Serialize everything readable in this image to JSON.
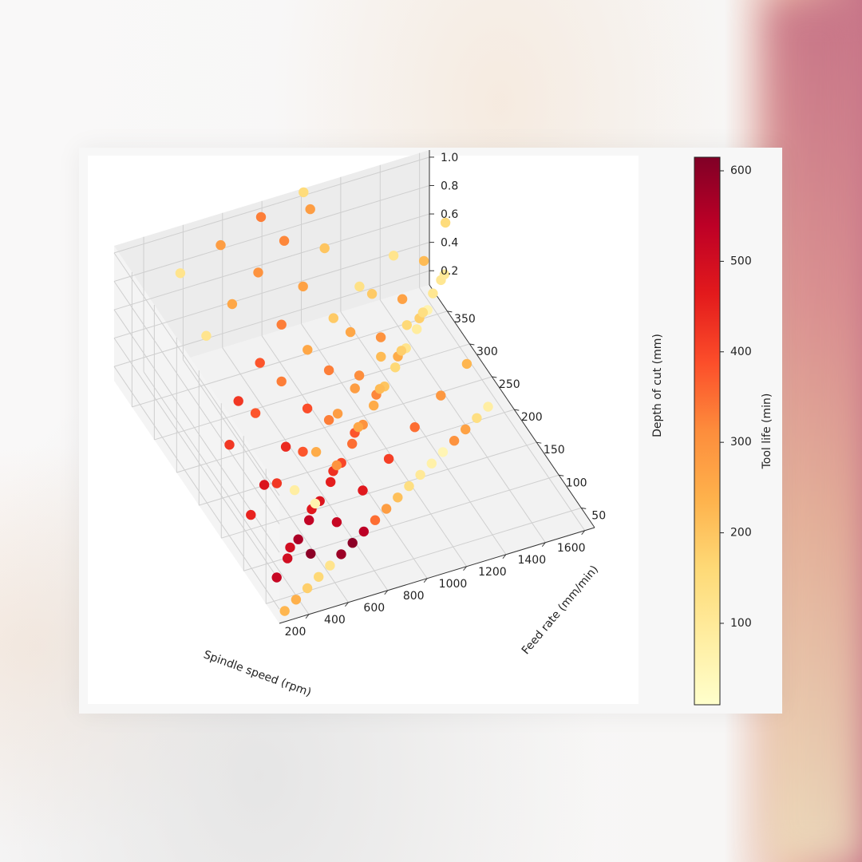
{
  "chart_data": {
    "type": "scatter",
    "dimensions": "3d",
    "title": "",
    "xlabel": "Spindle speed (rpm)",
    "ylabel": "Feed rate (mm/min)",
    "zlabel": "Depth of cut (mm)",
    "colorbar_label": "Tool life (min)",
    "colormap": "YlOrRd",
    "xlim": [
      50,
      1650
    ],
    "ylim": [
      20,
      390
    ],
    "zlim": [
      0.1,
      1.05
    ],
    "clim": [
      10,
      615
    ],
    "x_ticks": [
      "200",
      "400",
      "600",
      "800",
      "1000",
      "1200",
      "1400",
      "1600"
    ],
    "y_ticks": [
      "50",
      "100",
      "150",
      "200",
      "250",
      "300",
      "350"
    ],
    "z_ticks": [
      "0.2",
      "0.4",
      "0.6",
      "0.8",
      "1.0"
    ],
    "colorbar_ticks": [
      "100",
      "200",
      "300",
      "400",
      "500",
      "600"
    ],
    "grid": true,
    "legend": "none",
    "points": [
      [
        100,
        30,
        0.12,
        230
      ],
      [
        180,
        40,
        0.12,
        240
      ],
      [
        260,
        50,
        0.12,
        180
      ],
      [
        340,
        60,
        0.12,
        160
      ],
      [
        420,
        70,
        0.12,
        120
      ],
      [
        500,
        80,
        0.12,
        580
      ],
      [
        580,
        90,
        0.12,
        600
      ],
      [
        660,
        100,
        0.12,
        540
      ],
      [
        740,
        110,
        0.12,
        350
      ],
      [
        820,
        120,
        0.12,
        280
      ],
      [
        900,
        130,
        0.12,
        210
      ],
      [
        980,
        140,
        0.12,
        140
      ],
      [
        1060,
        150,
        0.12,
        100
      ],
      [
        1140,
        160,
        0.12,
        70
      ],
      [
        1220,
        170,
        0.12,
        50
      ],
      [
        1300,
        180,
        0.12,
        300
      ],
      [
        1380,
        190,
        0.12,
        270
      ],
      [
        1460,
        200,
        0.12,
        140
      ],
      [
        1540,
        210,
        0.12,
        80
      ],
      [
        150,
        70,
        0.15,
        520
      ],
      [
        250,
        90,
        0.15,
        500
      ],
      [
        350,
        110,
        0.15,
        560
      ],
      [
        450,
        130,
        0.15,
        530
      ],
      [
        550,
        150,
        0.15,
        480
      ],
      [
        650,
        170,
        0.15,
        460
      ],
      [
        750,
        190,
        0.15,
        400
      ],
      [
        850,
        210,
        0.15,
        350
      ],
      [
        950,
        230,
        0.15,
        300
      ],
      [
        1050,
        250,
        0.15,
        250
      ],
      [
        1150,
        270,
        0.15,
        200
      ],
      [
        1250,
        290,
        0.15,
        160
      ],
      [
        1350,
        310,
        0.15,
        120
      ],
      [
        1450,
        330,
        0.15,
        90
      ],
      [
        1550,
        350,
        0.15,
        60
      ],
      [
        200,
        150,
        0.2,
        450
      ],
      [
        400,
        180,
        0.2,
        420
      ],
      [
        600,
        210,
        0.2,
        380
      ],
      [
        800,
        240,
        0.2,
        330
      ],
      [
        1000,
        270,
        0.2,
        280
      ],
      [
        1200,
        300,
        0.2,
        220
      ],
      [
        1400,
        330,
        0.2,
        160
      ],
      [
        1600,
        360,
        0.2,
        110
      ],
      [
        300,
        60,
        0.3,
        600
      ],
      [
        500,
        90,
        0.3,
        520
      ],
      [
        700,
        120,
        0.3,
        470
      ],
      [
        900,
        150,
        0.3,
        410
      ],
      [
        1100,
        180,
        0.3,
        350
      ],
      [
        1300,
        210,
        0.3,
        290
      ],
      [
        1500,
        240,
        0.3,
        230
      ],
      [
        250,
        220,
        0.35,
        420
      ],
      [
        450,
        250,
        0.35,
        380
      ],
      [
        650,
        280,
        0.35,
        330
      ],
      [
        850,
        310,
        0.35,
        260
      ],
      [
        1050,
        340,
        0.35,
        190
      ],
      [
        1250,
        370,
        0.35,
        130
      ],
      [
        150,
        40,
        0.5,
        500
      ],
      [
        350,
        80,
        0.5,
        470
      ],
      [
        550,
        120,
        0.5,
        430
      ],
      [
        750,
        160,
        0.5,
        380
      ],
      [
        950,
        200,
        0.5,
        320
      ],
      [
        1150,
        240,
        0.5,
        250
      ],
      [
        1350,
        280,
        0.5,
        180
      ],
      [
        1550,
        320,
        0.5,
        110
      ],
      [
        200,
        120,
        0.55,
        480
      ],
      [
        400,
        160,
        0.55,
        440
      ],
      [
        600,
        200,
        0.55,
        390
      ],
      [
        800,
        240,
        0.55,
        330
      ],
      [
        1000,
        280,
        0.55,
        260
      ],
      [
        1200,
        320,
        0.55,
        190
      ],
      [
        1400,
        360,
        0.55,
        120
      ],
      [
        300,
        50,
        0.7,
        60
      ],
      [
        500,
        90,
        0.7,
        300
      ],
      [
        700,
        130,
        0.7,
        260
      ],
      [
        900,
        170,
        0.7,
        220
      ],
      [
        1100,
        210,
        0.7,
        180
      ],
      [
        1300,
        250,
        0.7,
        140
      ],
      [
        1500,
        290,
        0.7,
        100
      ],
      [
        250,
        200,
        0.75,
        420
      ],
      [
        450,
        240,
        0.75,
        380
      ],
      [
        650,
        280,
        0.75,
        330
      ],
      [
        850,
        320,
        0.75,
        270
      ],
      [
        1050,
        360,
        0.75,
        200
      ],
      [
        150,
        30,
        0.95,
        80
      ],
      [
        350,
        70,
        0.95,
        250
      ],
      [
        550,
        110,
        0.95,
        280
      ],
      [
        750,
        150,
        0.95,
        310
      ],
      [
        950,
        190,
        0.95,
        300
      ],
      [
        1150,
        230,
        0.95,
        270
      ],
      [
        1350,
        270,
        0.95,
        220
      ],
      [
        1550,
        310,
        0.95,
        150
      ],
      [
        200,
        250,
        1.0,
        120
      ],
      [
        400,
        280,
        1.0,
        260
      ],
      [
        600,
        310,
        1.0,
        300
      ],
      [
        800,
        340,
        1.0,
        320
      ],
      [
        1000,
        370,
        1.0,
        280
      ],
      [
        250,
        330,
        1.05,
        120
      ],
      [
        500,
        350,
        1.05,
        280
      ],
      [
        750,
        370,
        1.05,
        330
      ],
      [
        1000,
        385,
        1.05,
        150
      ]
    ]
  }
}
